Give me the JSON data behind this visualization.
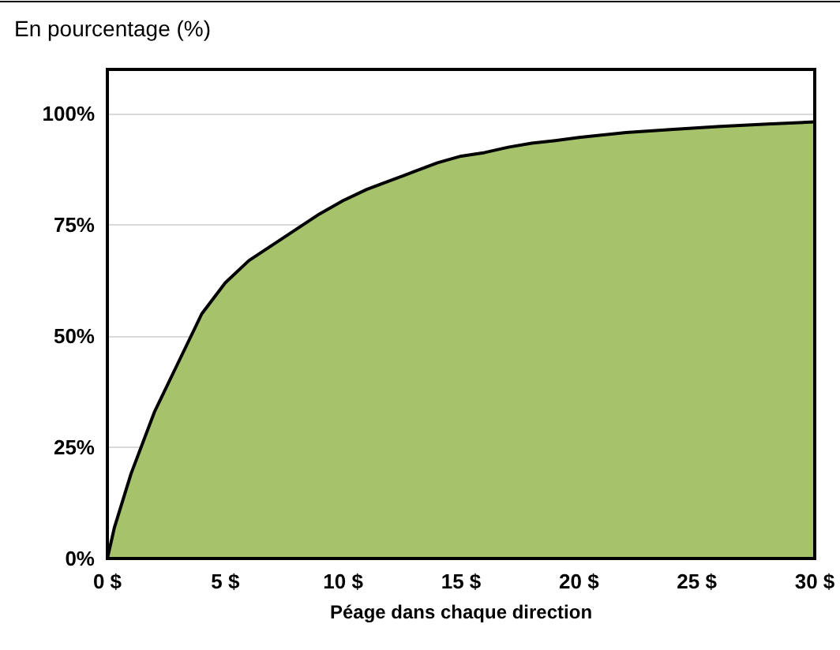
{
  "chart_data": {
    "type": "area",
    "title": "En pourcentage (%)",
    "xlabel": "Péage dans chaque direction",
    "x": [
      0,
      0.3,
      1,
      2,
      3,
      4,
      5,
      6,
      7,
      8,
      9,
      10,
      11,
      12,
      13,
      14,
      15,
      16,
      17,
      18,
      19,
      20,
      22,
      24,
      26,
      28,
      30
    ],
    "series": [
      {
        "color": "#a6c36b",
        "values": [
          0,
          7,
          19,
          33,
          44,
          55,
          62,
          67,
          70.5,
          74,
          77.5,
          80.5,
          83,
          85,
          87,
          89,
          90.5,
          91.3,
          92.5,
          93.4,
          94,
          94.7,
          95.8,
          96.5,
          97.2,
          97.7,
          98.2
        ]
      }
    ],
    "xlim": [
      0,
      30
    ],
    "xticks": [
      {
        "value": 0,
        "label": "0 $"
      },
      {
        "value": 5,
        "label": "5 $"
      },
      {
        "value": 10,
        "label": "10 $"
      },
      {
        "value": 15,
        "label": "15 $"
      },
      {
        "value": 20,
        "label": "20 $"
      },
      {
        "value": 25,
        "label": "25 $"
      },
      {
        "value": 30,
        "label": "30 $"
      }
    ],
    "ylim": [
      0,
      110
    ],
    "yticks": [
      {
        "value": 0,
        "label": "0%"
      },
      {
        "value": 25,
        "label": "25%"
      },
      {
        "value": 50,
        "label": "50%"
      },
      {
        "value": 75,
        "label": "75%"
      },
      {
        "value": 100,
        "label": "100%"
      }
    ],
    "grid": "y"
  }
}
